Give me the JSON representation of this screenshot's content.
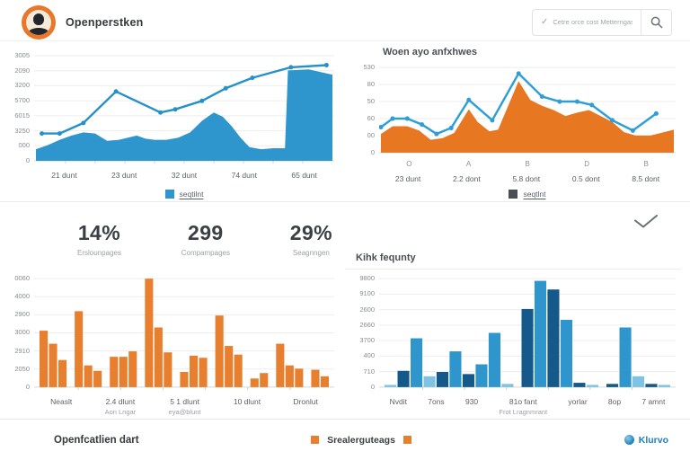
{
  "header": {
    "title": "Openperstken",
    "search_placeholder": "Cetre orce cost Metterngas"
  },
  "main": {
    "stats": [
      {
        "value": "14%",
        "label": "Erslounpages"
      },
      {
        "value": "299",
        "label": "Compampages"
      },
      {
        "value": "29%",
        "label": "Seagnngen"
      }
    ]
  },
  "footer": {
    "left_label": "Openfcatlien dart",
    "center_label": "Srealerguteags",
    "brand": "Klurvo"
  },
  "colors": {
    "accent_orange": "#e87f2e",
    "accent_blue": "#2e96cc",
    "dark_blue": "#15598a",
    "light_blue": "#7fc3e4",
    "brand_blue": "#1d7fc0"
  },
  "chart_data": [
    {
      "type": "area",
      "title": "",
      "y_ticks": [
        "3005",
        "2090",
        "3200",
        "5700",
        "6015",
        "3250",
        "000",
        "0"
      ],
      "x_labels": [
        "21 dunt",
        "23 dunt",
        "32 dunt",
        "74 dunt",
        "65 dunt"
      ],
      "x_sublabels": [
        "",
        "",
        "",
        "",
        ""
      ],
      "legend": {
        "label": "seqtilnt",
        "color": "#2e96cc"
      },
      "baseline_ticks": 9,
      "series": [
        {
          "name": "volume-area",
          "fill": true,
          "color": "#2e96cc",
          "points": [
            [
              0,
              11
            ],
            [
              4,
              15
            ],
            [
              8,
              20
            ],
            [
              12,
              24
            ],
            [
              16,
              27
            ],
            [
              20,
              26
            ],
            [
              24,
              19
            ],
            [
              28,
              20
            ],
            [
              31,
              22
            ],
            [
              34,
              24
            ],
            [
              37,
              21
            ],
            [
              40,
              20
            ],
            [
              44,
              20
            ],
            [
              48,
              22
            ],
            [
              52,
              27
            ],
            [
              56,
              38
            ],
            [
              60,
              46
            ],
            [
              63,
              42
            ],
            [
              66,
              33
            ],
            [
              69,
              22
            ],
            [
              72,
              13
            ],
            [
              76,
              11
            ],
            [
              80,
              12
            ],
            [
              84,
              12
            ],
            [
              85,
              86
            ],
            [
              92,
              87
            ],
            [
              100,
              82
            ]
          ]
        },
        {
          "name": "trend-line",
          "stroke": true,
          "markers": true,
          "color": "#2590c9",
          "points": [
            [
              2,
              26
            ],
            [
              8,
              26
            ],
            [
              16,
              36
            ],
            [
              27,
              66
            ],
            [
              42,
              46
            ],
            [
              47,
              49
            ],
            [
              56,
              57
            ],
            [
              64,
              69
            ],
            [
              73,
              79
            ],
            [
              86,
              89
            ],
            [
              98,
              91
            ]
          ]
        }
      ]
    },
    {
      "type": "area",
      "title": "Woen ayo anfxhwes",
      "y_ticks": [
        "530",
        "80",
        "50",
        "60",
        "00",
        "0"
      ],
      "letter_ticks": [
        "O",
        "A",
        "B",
        "D",
        "B"
      ],
      "x_labels": [
        "23 dunt",
        "2.2 dont",
        "5.8 dont",
        "0.5 dont",
        "8.5 dont"
      ],
      "x_sublabels": [
        "",
        "",
        "",
        "",
        ""
      ],
      "legend": {
        "label": "seqtlnt",
        "color": "#4a4d52"
      },
      "series": [
        {
          "name": "volume-area",
          "fill": true,
          "color": "#e87722",
          "points": [
            [
              0,
              22
            ],
            [
              4,
              31
            ],
            [
              9,
              31
            ],
            [
              13,
              26
            ],
            [
              17,
              15
            ],
            [
              21,
              17
            ],
            [
              25,
              23
            ],
            [
              30,
              51
            ],
            [
              33,
              36
            ],
            [
              37,
              25
            ],
            [
              40,
              27
            ],
            [
              47,
              84
            ],
            [
              51,
              62
            ],
            [
              55,
              55
            ],
            [
              59,
              50
            ],
            [
              63,
              43
            ],
            [
              67,
              47
            ],
            [
              71,
              50
            ],
            [
              75,
              43
            ],
            [
              79,
              36
            ],
            [
              83,
              24
            ],
            [
              87,
              20
            ],
            [
              92,
              20
            ],
            [
              100,
              27
            ]
          ]
        },
        {
          "name": "trend-line",
          "stroke": true,
          "markers": true,
          "color": "#2e9fd6",
          "points": [
            [
              0,
              30
            ],
            [
              4,
              40
            ],
            [
              9,
              40
            ],
            [
              14,
              33
            ],
            [
              19,
              22
            ],
            [
              24,
              29
            ],
            [
              30,
              62
            ],
            [
              38,
              38
            ],
            [
              47,
              93
            ],
            [
              55,
              66
            ],
            [
              61,
              60
            ],
            [
              67,
              60
            ],
            [
              72,
              56
            ],
            [
              79,
              38
            ],
            [
              86,
              26
            ],
            [
              94,
              46
            ]
          ]
        }
      ]
    },
    {
      "type": "bar",
      "title": "",
      "y_ticks": [
        "0060",
        "4000",
        "2900",
        "3000",
        "2910",
        "2050",
        "0"
      ],
      "x_labels": [
        "Neaslt",
        "2.4 dlunt",
        "5 1 dlunt",
        "10 dlunt",
        "Dronlut"
      ],
      "x_sublabels": [
        "",
        "Aon Lngar",
        "eya@blunt",
        "",
        ""
      ],
      "colors": {
        "default": "#e87f2e"
      },
      "baseline_ticks": 6,
      "groups": [
        [
          52,
          40,
          25
        ],
        [
          70,
          20,
          15
        ],
        [
          28,
          28,
          33
        ],
        [
          100,
          55,
          32
        ],
        [
          14,
          29,
          27
        ],
        [
          66,
          38,
          30
        ],
        [
          8,
          13
        ],
        [
          40,
          20,
          17
        ],
        [
          16,
          10
        ]
      ]
    },
    {
      "type": "bar",
      "title": "Kihk fequnty",
      "y_ticks": [
        "9800",
        "9100",
        "2600",
        "2660",
        "3700",
        "400",
        "710",
        "0"
      ],
      "x_labels": [
        "Nvdit",
        "7ons",
        "930",
        "81o fant",
        "yorlar",
        "8op",
        "7 amnt"
      ],
      "x_sublabels": [
        "",
        "",
        "",
        "Frot Lragnmrant",
        "",
        "",
        ""
      ],
      "colors": {
        "dark": "#15598a",
        "mid": "#2e96cc",
        "light": "#7fc3e4",
        "default": "#2e96cc"
      },
      "baseline_ticks": 6,
      "groups": [
        [
          [
            2,
            "light"
          ],
          [
            15,
            "dark"
          ],
          [
            45,
            "mid"
          ],
          [
            10,
            "light"
          ],
          [
            14,
            "dark"
          ],
          [
            33,
            "mid"
          ],
          [
            12,
            "dark"
          ],
          [
            21,
            "mid"
          ],
          [
            50,
            "mid"
          ],
          [
            3,
            "light"
          ]
        ],
        [
          [
            72,
            "dark"
          ],
          [
            98,
            "mid"
          ],
          [
            90,
            "dark"
          ],
          [
            62,
            "mid"
          ],
          [
            4,
            "dark"
          ],
          [
            2,
            "light"
          ]
        ],
        [
          [
            3,
            "dark"
          ],
          [
            55,
            "mid"
          ],
          [
            10,
            "light"
          ],
          [
            3,
            "dark"
          ],
          [
            2,
            "light"
          ]
        ]
      ]
    }
  ]
}
